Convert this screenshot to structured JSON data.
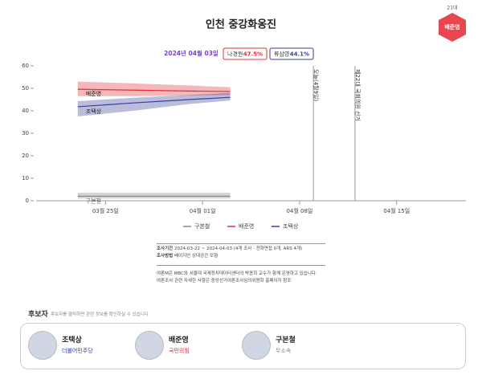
{
  "header": {
    "title": "인천 중강화옹진",
    "term": "21대",
    "badge": "배준영"
  },
  "summary": {
    "date": "2024년 04월 03일",
    "boxes": [
      {
        "name": "나경원",
        "value": "47.5%",
        "color": "#e0303a"
      },
      {
        "name": "류삼영",
        "value": "44.1%",
        "color": "#3a3f9a"
      }
    ]
  },
  "chart_data": {
    "type": "line",
    "x": [
      "03-23",
      "03-27",
      "03-31",
      "04-03"
    ],
    "series": [
      {
        "name": "구본철",
        "color": "#888888",
        "values": [
          2,
          2,
          2,
          2
        ],
        "lower": [
          1,
          1,
          1,
          1
        ],
        "upper": [
          3.6,
          3.6,
          3.6,
          3.6
        ]
      },
      {
        "name": "배준영",
        "color": "#e0303a",
        "values": [
          49.6,
          49.2,
          48.8,
          48.6
        ],
        "lower": [
          46.5,
          46.5,
          46.8,
          47
        ],
        "upper": [
          53,
          52.2,
          51.3,
          50.5
        ]
      },
      {
        "name": "조택상",
        "color": "#3a3f9a",
        "values": [
          41.8,
          43.5,
          45,
          46
        ],
        "lower": [
          37.5,
          40,
          43,
          44.6
        ],
        "upper": [
          44.3,
          45.8,
          47,
          48
        ]
      }
    ],
    "xlim": [
      "03-20",
      "04-20"
    ],
    "xticks": [
      {
        "value": "03-25",
        "label": "03월 25일"
      },
      {
        "value": "04-01",
        "label": "04월 01일"
      },
      {
        "value": "04-08",
        "label": "04월 08일"
      },
      {
        "value": "04-15",
        "label": "04월 15일"
      }
    ],
    "ylim": [
      0,
      60
    ],
    "yticks": [
      0,
      10,
      20,
      30,
      40,
      50,
      60
    ],
    "events": [
      {
        "x": "04-09",
        "label": "오늘(4월9일)"
      },
      {
        "x": "04-12",
        "label": "제22대 국회의원 선거"
      }
    ]
  },
  "notes": {
    "period_label": "조사기간",
    "period": "2024-03-22 ~ 2024-04-03 (4개 조사 · 전화면접 0개, ARS 4개)",
    "method_label": "조사방법",
    "method": "베이지안 상대공간 모형",
    "text1": "여론M은 MBC와 서울대 국제정치데이터센터의 박종희 교수가 함께 운영하고 있습니다.",
    "text2": "여론조사 관련 자세한 사항은 중앙선거여론조사심의위원회 홈페이지 참조"
  },
  "candidates": {
    "title": "후보자",
    "hint": "후보자를 클릭하면 관련 정보를 확인하실 수 있습니다",
    "list": [
      {
        "name": "조택상",
        "party": "더불어민주당",
        "color": "#2a3fb0"
      },
      {
        "name": "배준영",
        "party": "국민의힘",
        "color": "#e0303a"
      },
      {
        "name": "구본철",
        "party": "무소속",
        "color": "#888888"
      }
    ]
  }
}
